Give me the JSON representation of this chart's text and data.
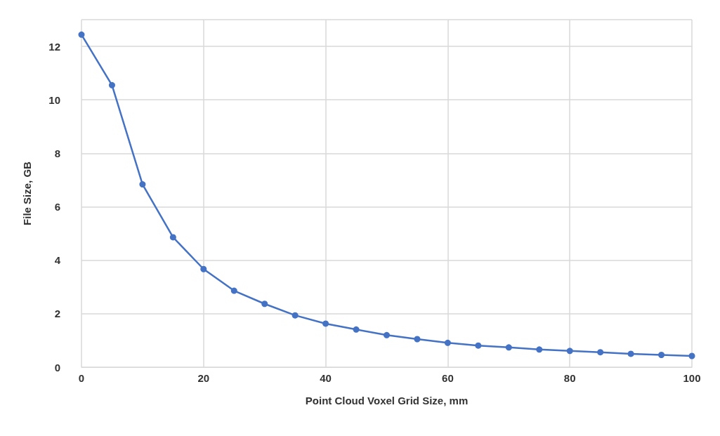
{
  "chart_data": {
    "type": "line",
    "xlabel": "Point Cloud Voxel Grid Size, mm",
    "ylabel": "File Size, GB",
    "x": [
      0,
      5,
      10,
      15,
      20,
      25,
      30,
      35,
      40,
      45,
      50,
      55,
      60,
      65,
      70,
      75,
      80,
      85,
      90,
      95,
      100
    ],
    "series": [
      {
        "color": "#4472c4",
        "values": [
          12.44,
          10.55,
          6.84,
          4.86,
          3.67,
          2.86,
          2.37,
          1.94,
          1.63,
          1.41,
          1.2,
          1.05,
          0.91,
          0.81,
          0.74,
          0.66,
          0.61,
          0.56,
          0.5,
          0.46,
          0.42
        ]
      }
    ],
    "xlim": [
      0,
      100
    ],
    "xticks": [
      0,
      20,
      40,
      60,
      80,
      100
    ],
    "ylim": [
      0,
      13
    ],
    "yticks": [
      0,
      2,
      4,
      6,
      8,
      10,
      12
    ],
    "grid": true,
    "marker": "circle",
    "line_style": "solid"
  }
}
